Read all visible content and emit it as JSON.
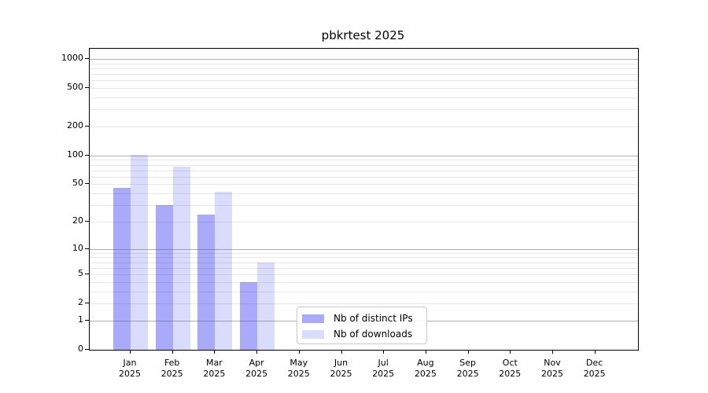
{
  "chart_data": {
    "type": "bar",
    "title": "pbkrtest 2025",
    "scale": "log10(value+1)",
    "categories": [
      "Jan",
      "Feb",
      "Mar",
      "Apr",
      "May",
      "Jun",
      "Jul",
      "Aug",
      "Sep",
      "Oct",
      "Nov",
      "Dec"
    ],
    "year": "2025",
    "series": [
      {
        "name": "Nb of distinct IPs",
        "color": "#a9abfa",
        "values": [
          46,
          30,
          24,
          4,
          0,
          0,
          0,
          0,
          0,
          0,
          0,
          0
        ]
      },
      {
        "name": "Nb of downloads",
        "color": "#dadcfb",
        "values": [
          101,
          76,
          42,
          7,
          0,
          0,
          0,
          0,
          0,
          0,
          0,
          0
        ]
      }
    ],
    "y_ticks": [
      0,
      1,
      2,
      5,
      10,
      20,
      50,
      100,
      200,
      500,
      1000
    ],
    "major_gridlines": [
      1,
      10,
      100,
      1000
    ],
    "minor_gridlines": [
      2,
      3,
      4,
      5,
      6,
      7,
      8,
      9,
      20,
      30,
      40,
      50,
      60,
      70,
      80,
      90,
      200,
      300,
      400,
      500,
      600,
      700,
      800,
      900
    ],
    "ylim": [
      0,
      1276
    ],
    "xlabel": "",
    "ylabel": "",
    "grid": true,
    "legend_position": "lower-center"
  }
}
